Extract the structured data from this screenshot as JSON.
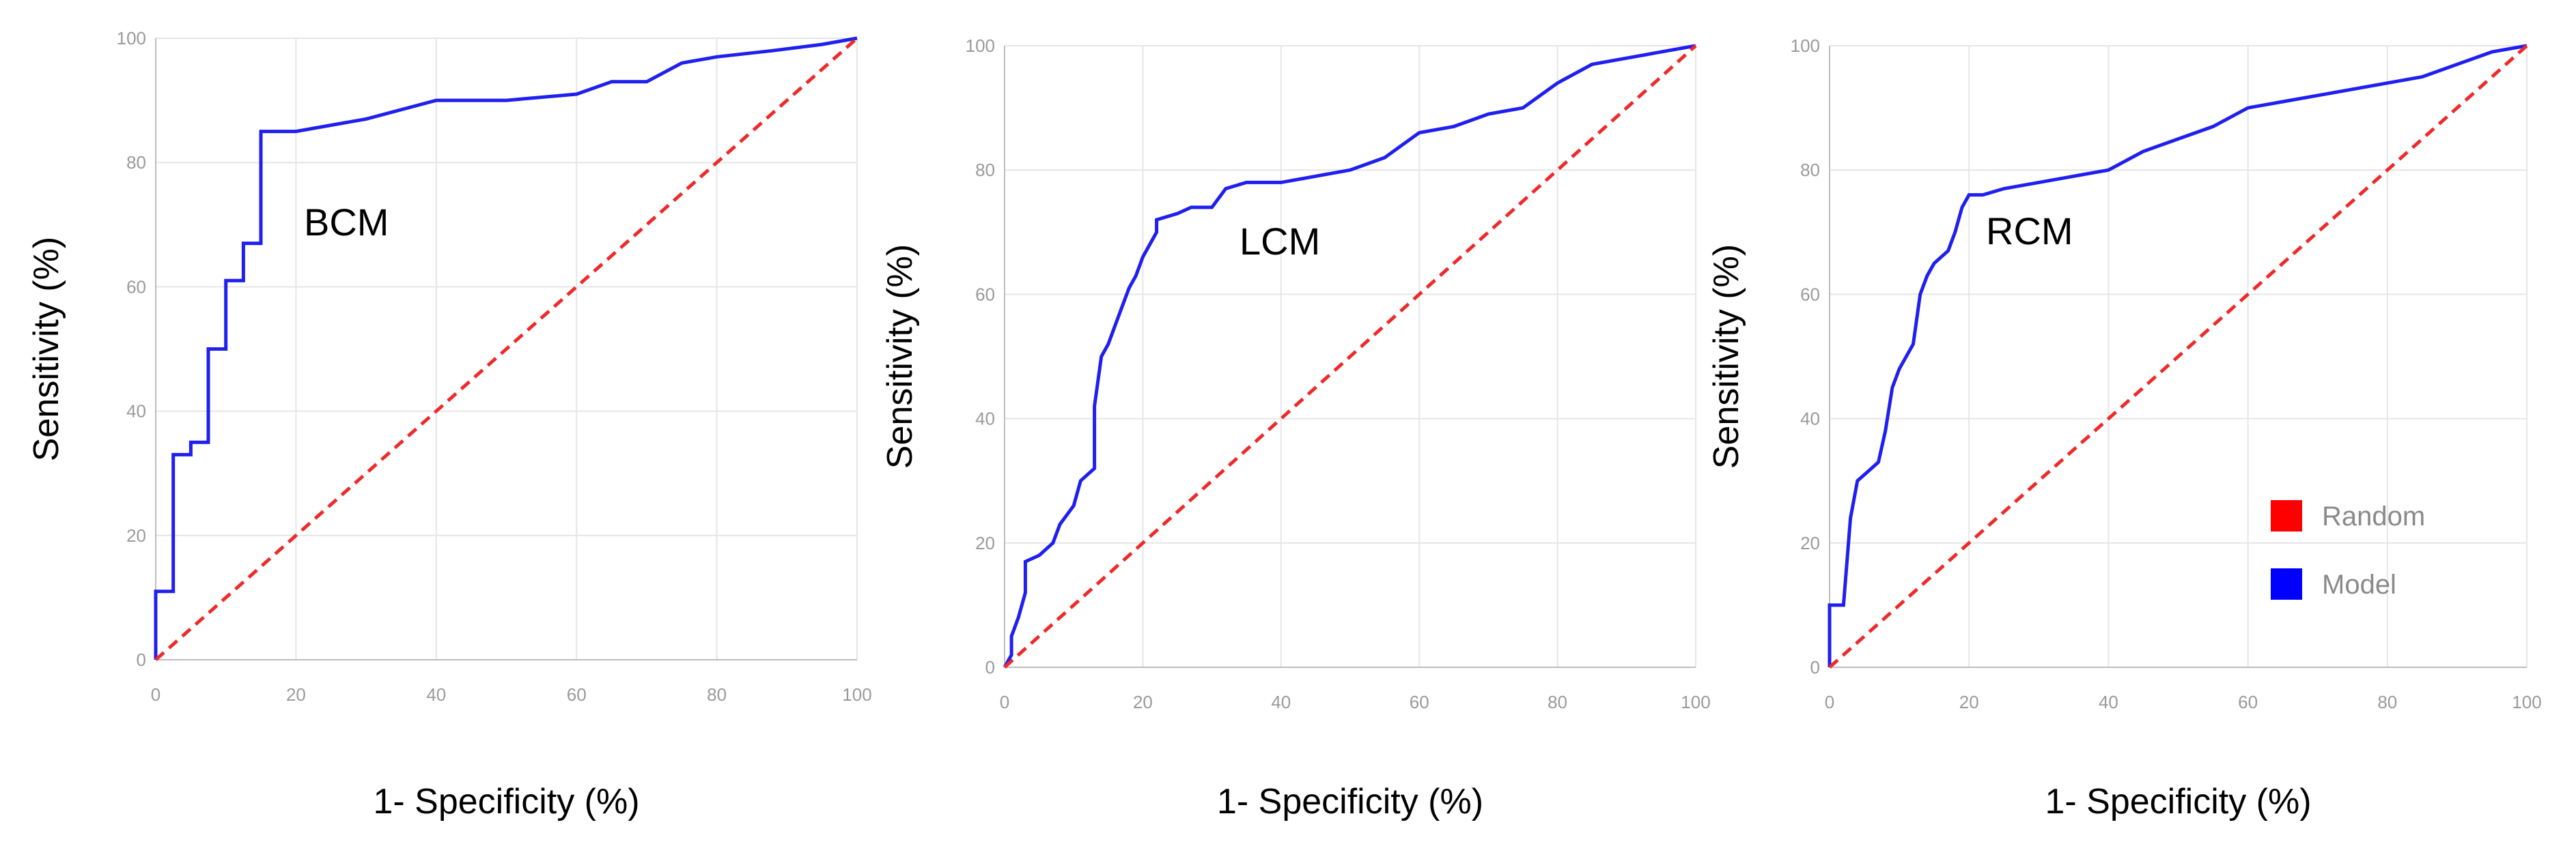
{
  "legend": {
    "items": [
      {
        "label": "Random",
        "color": "#ff0000"
      },
      {
        "label": "Model",
        "color": "#0000ff"
      }
    ]
  },
  "colors": {
    "model": "#1f1ff0",
    "random": "#ee2a2a",
    "grid": "#e6e6e6",
    "axis": "#bdbdbd"
  },
  "chart_data": [
    {
      "type": "line",
      "panel_label": "BCM",
      "xlabel": "1- Specificity (%)",
      "ylabel": "Sensitivity (%)",
      "xlim": [
        0,
        100
      ],
      "ylim": [
        0,
        100
      ],
      "xticks": [
        0,
        20,
        40,
        60,
        80,
        100
      ],
      "yticks": [
        0,
        20,
        40,
        60,
        80,
        100
      ],
      "grid": true,
      "series": [
        {
          "name": "Model",
          "color": "#0000ff",
          "x": [
            0,
            0,
            2.5,
            2.5,
            5,
            5,
            7.5,
            7.5,
            10,
            10,
            12.5,
            12.5,
            15,
            15,
            20,
            25,
            30,
            40,
            50,
            60,
            65,
            70,
            75,
            80,
            88,
            95,
            100
          ],
          "y": [
            0,
            11,
            11,
            33,
            33,
            35,
            35,
            50,
            50,
            61,
            61,
            67,
            67,
            85,
            85,
            86,
            87,
            90,
            90,
            91,
            93,
            93,
            96,
            97,
            98,
            99,
            100
          ]
        },
        {
          "name": "Random",
          "color": "#ff0000",
          "x": [
            0,
            100
          ],
          "y": [
            0,
            100
          ]
        }
      ]
    },
    {
      "type": "line",
      "panel_label": "LCM",
      "xlabel": "1- Specificity (%)",
      "ylabel": "Sensitivity (%)",
      "xlim": [
        0,
        100
      ],
      "ylim": [
        0,
        100
      ],
      "xticks": [
        0,
        20,
        40,
        60,
        80,
        100
      ],
      "yticks": [
        0,
        20,
        40,
        60,
        80,
        100
      ],
      "grid": true,
      "series": [
        {
          "name": "Model",
          "color": "#0000ff",
          "x": [
            0,
            1,
            1,
            2,
            3,
            3,
            5,
            7,
            8,
            10,
            11,
            13,
            13,
            14,
            15,
            16,
            17,
            18,
            19,
            20,
            21,
            22,
            22,
            25,
            27,
            30,
            32,
            35,
            40,
            45,
            50,
            55,
            60,
            65,
            70,
            75,
            80,
            85,
            90,
            95,
            100
          ],
          "y": [
            0,
            2,
            5,
            8,
            12,
            17,
            18,
            20,
            23,
            26,
            30,
            32,
            42,
            50,
            52,
            55,
            58,
            61,
            63,
            66,
            68,
            70,
            72,
            73,
            74,
            74,
            77,
            78,
            78,
            79,
            80,
            82,
            86,
            87,
            89,
            90,
            94,
            97,
            98,
            99,
            100
          ]
        },
        {
          "name": "Random",
          "color": "#ff0000",
          "x": [
            0,
            100
          ],
          "y": [
            0,
            100
          ]
        }
      ]
    },
    {
      "type": "line",
      "panel_label": "RCM",
      "xlabel": "1- Specificity (%)",
      "ylabel": "Sensitivity (%)",
      "xlim": [
        0,
        100
      ],
      "ylim": [
        0,
        100
      ],
      "xticks": [
        0,
        20,
        40,
        60,
        80,
        100
      ],
      "yticks": [
        0,
        20,
        40,
        60,
        80,
        100
      ],
      "grid": true,
      "series": [
        {
          "name": "Model",
          "color": "#0000ff",
          "x": [
            0,
            0,
            2,
            3,
            4,
            5,
            6,
            7,
            8,
            9,
            10,
            11,
            12,
            13,
            14,
            15,
            17,
            18,
            19,
            20,
            22,
            25,
            30,
            35,
            40,
            45,
            50,
            55,
            60,
            65,
            70,
            75,
            80,
            85,
            90,
            95,
            100
          ],
          "y": [
            0,
            10,
            10,
            24,
            30,
            31,
            32,
            33,
            38,
            45,
            48,
            50,
            52,
            60,
            63,
            65,
            67,
            70,
            74,
            76,
            76,
            77,
            78,
            79,
            80,
            83,
            85,
            87,
            90,
            91,
            92,
            93,
            94,
            95,
            97,
            99,
            100
          ]
        },
        {
          "name": "Random",
          "color": "#ff0000",
          "x": [
            0,
            100
          ],
          "y": [
            0,
            100
          ]
        }
      ]
    }
  ]
}
